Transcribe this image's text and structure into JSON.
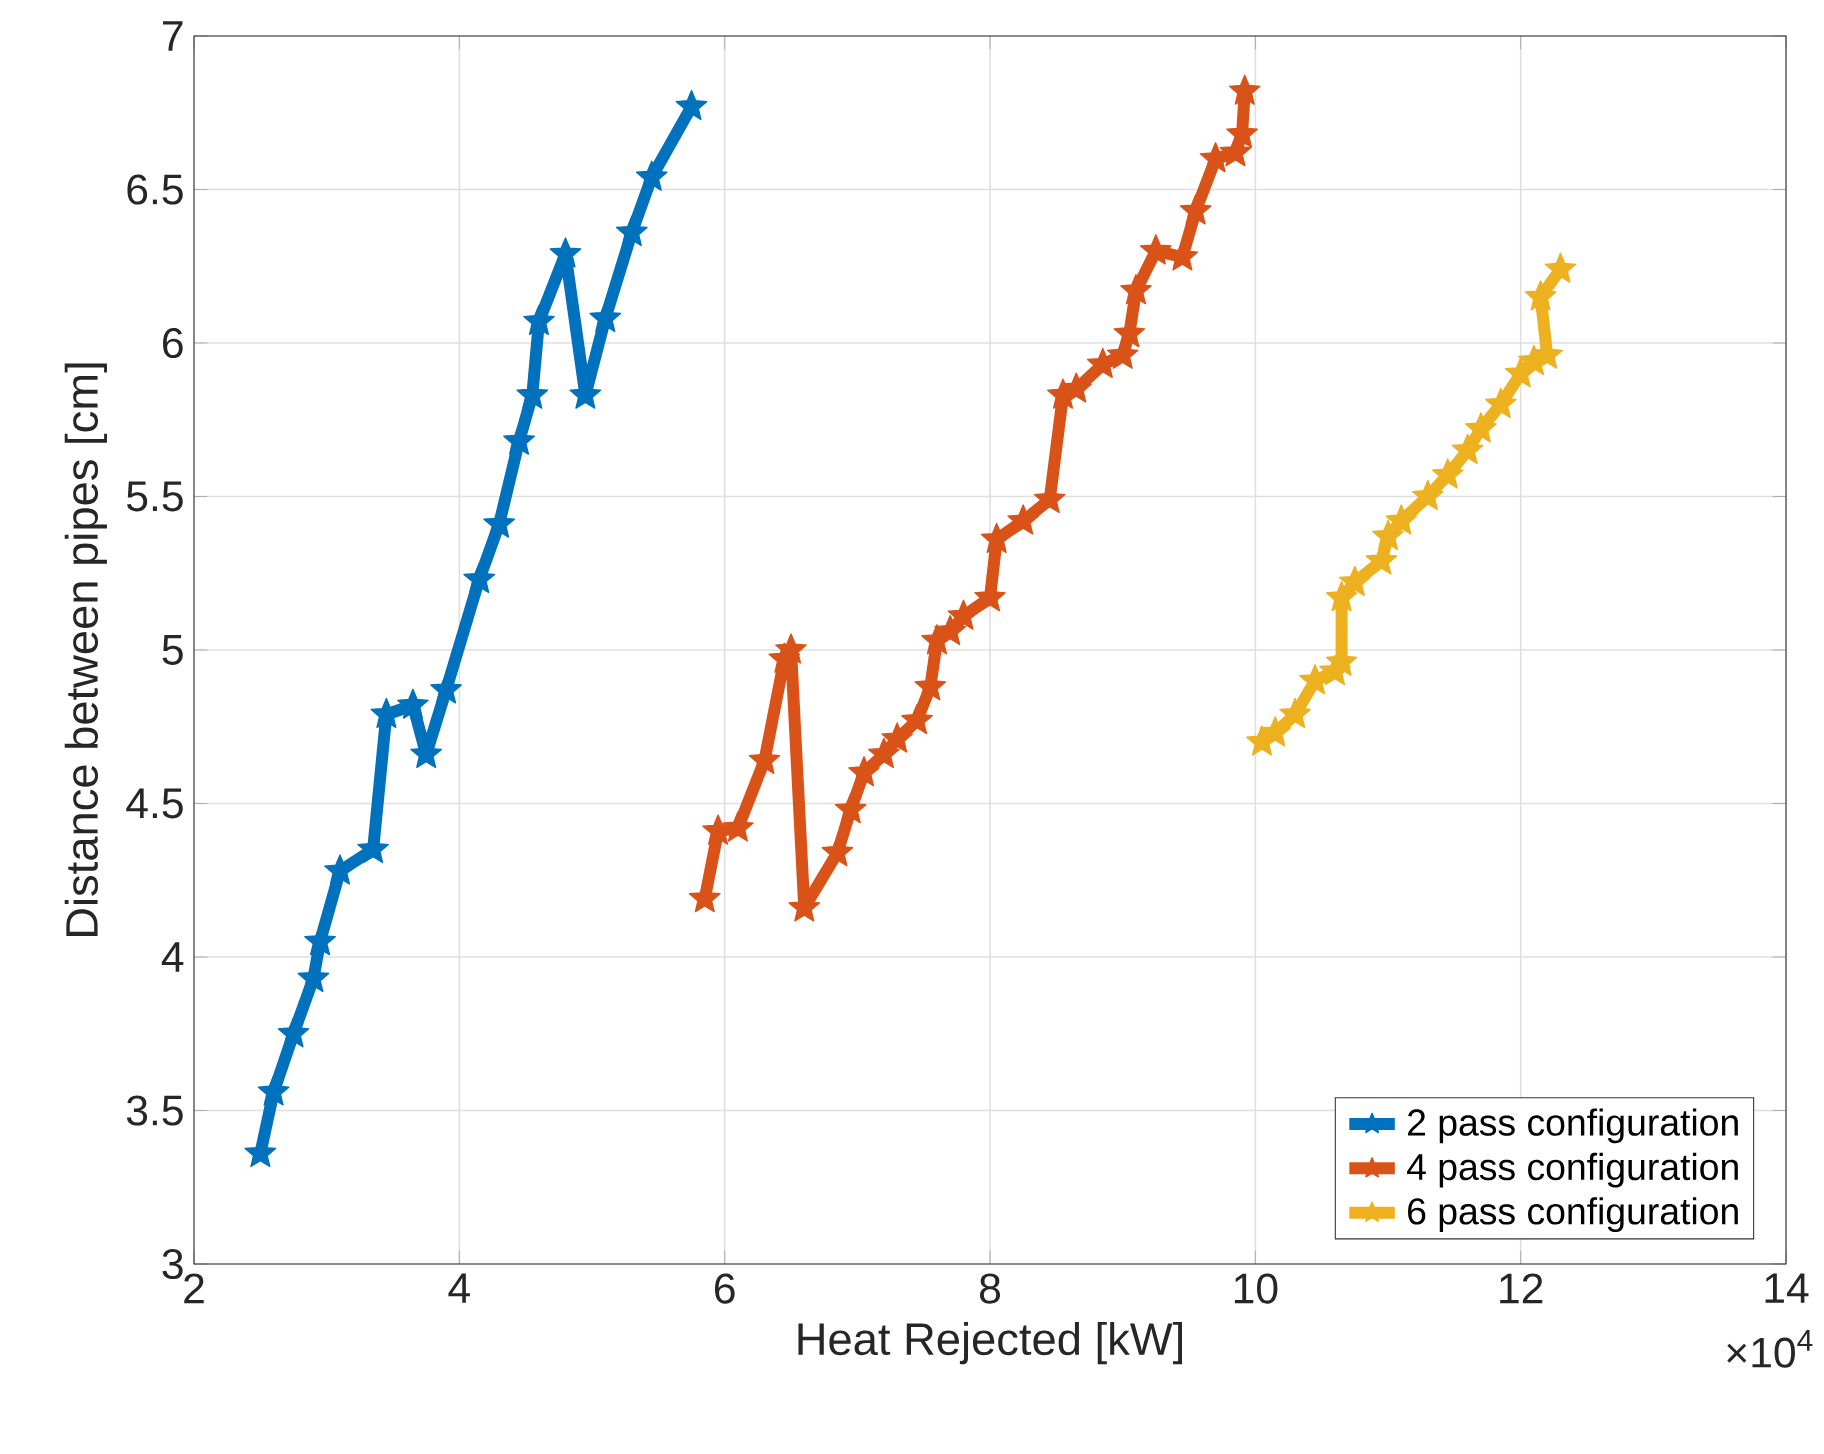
{
  "chart_data": {
    "type": "line",
    "xlabel": "Heat Rejected [kW]",
    "ylabel": "Distance between pipes [cm]",
    "annotations": [
      "×10$^{4}$"
    ],
    "xlim": [
      2,
      14
    ],
    "xticks": [
      2,
      4,
      6,
      8,
      10,
      12,
      14
    ],
    "ylim": [
      3,
      7
    ],
    "yticks": [
      3,
      3.5,
      4,
      4.5,
      5,
      5.5,
      6,
      6.5,
      7
    ],
    "grid": true,
    "legend": "bottom right",
    "marker": "star",
    "line_style": "solid",
    "series": [
      {
        "name": "2 pass configuration",
        "color": "#0072bd",
        "x": [
          2.5,
          2.6,
          2.75,
          2.9,
          2.95,
          3.1,
          3.35,
          3.45,
          3.65,
          3.75,
          3.9,
          4.15,
          4.3,
          4.45,
          4.55,
          4.6,
          4.8,
          4.95,
          5.1,
          5.3,
          5.45,
          5.75
        ],
        "values": [
          3.36,
          3.56,
          3.75,
          3.93,
          4.05,
          4.28,
          4.35,
          4.79,
          4.82,
          4.66,
          4.87,
          5.23,
          5.41,
          5.68,
          5.83,
          6.07,
          6.29,
          5.83,
          6.08,
          6.36,
          6.54,
          6.77
        ]
      },
      {
        "name": "4 pass configuration",
        "color": "#d95319",
        "x": [
          5.85,
          5.95,
          6.1,
          6.3,
          6.45,
          6.5,
          6.6,
          6.85,
          6.95,
          7.05,
          7.2,
          7.3,
          7.45,
          7.55,
          7.6,
          7.7,
          7.8,
          8.0,
          8.05,
          8.25,
          8.45,
          8.55,
          8.65,
          8.85,
          9.0,
          9.05,
          9.1,
          9.25,
          9.45,
          9.55,
          9.7,
          9.85,
          9.9,
          9.92
        ],
        "values": [
          4.19,
          4.41,
          4.42,
          4.64,
          4.97,
          5.0,
          4.16,
          4.34,
          4.48,
          4.6,
          4.66,
          4.71,
          4.77,
          4.88,
          5.03,
          5.06,
          5.11,
          5.17,
          5.36,
          5.42,
          5.49,
          5.83,
          5.85,
          5.93,
          5.96,
          6.03,
          6.17,
          6.3,
          6.28,
          6.43,
          6.6,
          6.62,
          6.68,
          6.82
        ]
      },
      {
        "name": "6 pass configuration",
        "color": "#edb120",
        "x": [
          10.05,
          10.15,
          10.3,
          10.45,
          10.6,
          10.65,
          10.65,
          10.75,
          10.95,
          11.0,
          11.1,
          11.3,
          11.45,
          11.6,
          11.7,
          11.85,
          12.0,
          12.1,
          12.2,
          12.15,
          12.3
        ],
        "values": [
          4.7,
          4.73,
          4.79,
          4.9,
          4.93,
          4.96,
          5.17,
          5.22,
          5.29,
          5.37,
          5.42,
          5.5,
          5.57,
          5.65,
          5.72,
          5.8,
          5.9,
          5.94,
          5.96,
          6.15,
          6.24
        ]
      }
    ]
  }
}
